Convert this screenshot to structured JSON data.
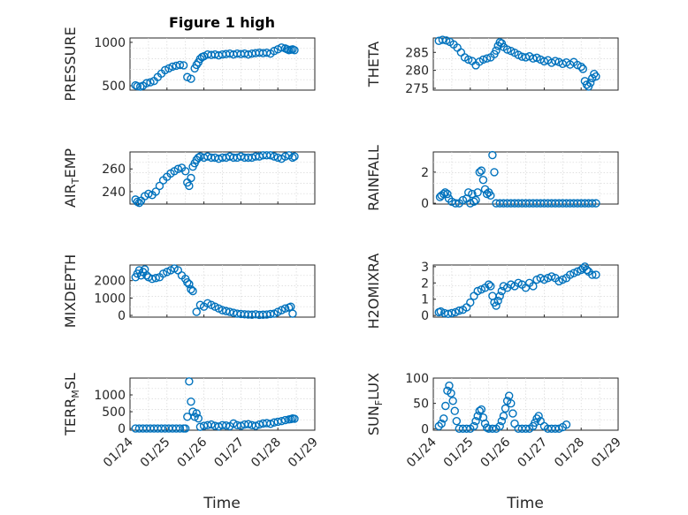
{
  "figure": {
    "title": "Figure 1 high"
  },
  "x_axis": {
    "ticks": [
      "01/24",
      "01/25",
      "01/26",
      "01/27",
      "01/28",
      "01/29"
    ],
    "label": "Time"
  },
  "series_color": "#0072bd",
  "chart_data": [
    {
      "type": "scatter",
      "ylabel": "PRESSURE",
      "ylim": [
        450,
        1050
      ],
      "yticks": [
        500,
        1000
      ],
      "xlim": [
        0,
        5
      ],
      "x": [
        0.15,
        0.2,
        0.28,
        0.35,
        0.45,
        0.55,
        0.65,
        0.75,
        0.85,
        0.95,
        1.05,
        1.15,
        1.25,
        1.35,
        1.45,
        1.55,
        1.65,
        1.75,
        1.8,
        1.85,
        1.9,
        1.95,
        2.0,
        2.1,
        2.2,
        2.3,
        2.4,
        2.5,
        2.6,
        2.7,
        2.8,
        2.9,
        3.0,
        3.1,
        3.2,
        3.3,
        3.4,
        3.5,
        3.6,
        3.7,
        3.8,
        3.9,
        4.0,
        4.1,
        4.2,
        4.25,
        4.3,
        4.35,
        4.4,
        4.45
      ],
      "values": [
        505,
        495,
        490,
        500,
        530,
        540,
        555,
        600,
        640,
        680,
        700,
        720,
        730,
        740,
        735,
        600,
        580,
        700,
        740,
        770,
        810,
        830,
        840,
        860,
        855,
        860,
        850,
        860,
        865,
        870,
        860,
        870,
        865,
        870,
        860,
        870,
        875,
        880,
        875,
        880,
        870,
        900,
        920,
        940,
        930,
        920,
        910,
        915,
        920,
        910
      ]
    },
    {
      "type": "scatter",
      "ylabel": "THETA",
      "ylim": [
        274.5,
        289
      ],
      "yticks": [
        275,
        280,
        285
      ],
      "xlim": [
        0,
        5
      ],
      "x": [
        0.15,
        0.25,
        0.35,
        0.45,
        0.55,
        0.65,
        0.75,
        0.85,
        0.95,
        1.05,
        1.15,
        1.25,
        1.35,
        1.45,
        1.55,
        1.65,
        1.7,
        1.75,
        1.8,
        1.85,
        1.9,
        2.0,
        2.1,
        2.2,
        2.3,
        2.4,
        2.5,
        2.6,
        2.7,
        2.8,
        2.9,
        3.0,
        3.1,
        3.2,
        3.3,
        3.4,
        3.5,
        3.6,
        3.7,
        3.8,
        3.9,
        4.0,
        4.05,
        4.1,
        4.15,
        4.2,
        4.25,
        4.3,
        4.35,
        4.4
      ],
      "values": [
        288.2,
        288.5,
        288.3,
        287.9,
        287.2,
        286.3,
        285.0,
        283.6,
        283.0,
        282.6,
        281.4,
        282.4,
        283.0,
        283.3,
        283.6,
        284.5,
        285.5,
        286.8,
        287.8,
        287.5,
        286.5,
        285.8,
        285.4,
        284.9,
        284.3,
        283.8,
        283.6,
        283.9,
        283.3,
        283.5,
        283.0,
        282.5,
        282.8,
        282.1,
        282.6,
        282.3,
        281.8,
        282.2,
        281.6,
        282.3,
        281.5,
        281.0,
        280.4,
        277.0,
        276.0,
        275.5,
        276.5,
        277.8,
        279.0,
        278.3
      ]
    },
    {
      "type": "scatter",
      "ylabel": "AIR_TEMP",
      "ylim": [
        229,
        275
      ],
      "yticks": [
        240,
        260
      ],
      "xlim": [
        0,
        5
      ],
      "x": [
        0.15,
        0.2,
        0.25,
        0.3,
        0.4,
        0.5,
        0.6,
        0.7,
        0.8,
        0.9,
        1.0,
        1.1,
        1.2,
        1.3,
        1.4,
        1.5,
        1.55,
        1.6,
        1.65,
        1.7,
        1.75,
        1.8,
        1.85,
        1.9,
        2.0,
        2.1,
        2.2,
        2.3,
        2.4,
        2.5,
        2.6,
        2.7,
        2.8,
        2.9,
        3.0,
        3.1,
        3.2,
        3.3,
        3.4,
        3.5,
        3.6,
        3.7,
        3.8,
        3.9,
        4.0,
        4.1,
        4.2,
        4.3,
        4.4,
        4.45
      ],
      "values": [
        233,
        231,
        230,
        232,
        236,
        238,
        237,
        240,
        245,
        250,
        253,
        256,
        258,
        260,
        261,
        258,
        248,
        245,
        252,
        262,
        265,
        268,
        270,
        271,
        270,
        271,
        270,
        270,
        269,
        270,
        270,
        271,
        270,
        270,
        271,
        270,
        270,
        270,
        271,
        271,
        272,
        272,
        272,
        271,
        270,
        269,
        271,
        272,
        270,
        271
      ]
    },
    {
      "type": "scatter",
      "ylabel": "RAINFALL",
      "ylim": [
        -0.05,
        3.3
      ],
      "yticks": [
        0,
        2
      ],
      "xlim": [
        0,
        5
      ],
      "x": [
        0.18,
        0.22,
        0.28,
        0.32,
        0.38,
        0.42,
        0.5,
        0.6,
        0.7,
        0.8,
        0.9,
        0.95,
        1.0,
        1.05,
        1.1,
        1.15,
        1.2,
        1.25,
        1.3,
        1.35,
        1.4,
        1.45,
        1.5,
        1.55,
        1.6,
        1.65,
        1.7,
        1.8,
        1.9,
        2.0,
        2.1,
        2.2,
        2.3,
        2.4,
        2.5,
        2.6,
        2.7,
        2.8,
        2.9,
        3.0,
        3.1,
        3.2,
        3.3,
        3.4,
        3.5,
        3.6,
        3.7,
        3.8,
        3.9,
        4.0,
        4.1,
        4.2,
        4.3,
        4.4
      ],
      "values": [
        0.4,
        0.5,
        0.6,
        0.7,
        0.6,
        0.3,
        0.1,
        0.0,
        0.0,
        0.2,
        0.3,
        0.7,
        0.0,
        0.6,
        0.1,
        0.2,
        0.7,
        2.0,
        2.1,
        1.5,
        0.9,
        0.6,
        0.7,
        0.5,
        3.1,
        2.0,
        0.0,
        0.0,
        0.0,
        0.0,
        0.0,
        0.0,
        0.0,
        0.0,
        0.0,
        0.0,
        0.0,
        0.0,
        0.0,
        0.0,
        0.0,
        0.0,
        0.0,
        0.0,
        0.0,
        0.0,
        0.0,
        0.0,
        0.0,
        0.0,
        0.0,
        0.0,
        0.0,
        0.0
      ]
    },
    {
      "type": "scatter",
      "ylabel": "MIXDEPTH",
      "ylim": [
        -100,
        2900
      ],
      "yticks": [
        0,
        1000,
        2000
      ],
      "xlim": [
        0,
        5
      ],
      "x": [
        0.15,
        0.2,
        0.25,
        0.3,
        0.35,
        0.4,
        0.45,
        0.5,
        0.6,
        0.7,
        0.8,
        0.9,
        1.0,
        1.1,
        1.2,
        1.3,
        1.4,
        1.5,
        1.55,
        1.6,
        1.65,
        1.7,
        1.8,
        1.9,
        2.0,
        2.1,
        2.2,
        2.3,
        2.4,
        2.5,
        2.6,
        2.7,
        2.8,
        2.9,
        3.0,
        3.1,
        3.2,
        3.3,
        3.4,
        3.5,
        3.6,
        3.7,
        3.8,
        3.9,
        4.0,
        4.1,
        4.2,
        4.3,
        4.35,
        4.4
      ],
      "values": [
        2200,
        2400,
        2600,
        2300,
        2500,
        2650,
        2300,
        2200,
        2100,
        2150,
        2200,
        2400,
        2500,
        2600,
        2700,
        2600,
        2300,
        2100,
        1900,
        1800,
        1500,
        1400,
        200,
        600,
        500,
        700,
        600,
        500,
        400,
        300,
        250,
        200,
        150,
        100,
        80,
        60,
        50,
        40,
        60,
        30,
        40,
        50,
        80,
        100,
        200,
        300,
        400,
        450,
        500,
        100
      ]
    },
    {
      "type": "scatter",
      "ylabel": "H2OMIXRA",
      "ylim": [
        -0.1,
        3.1
      ],
      "yticks": [
        0,
        1,
        2,
        3
      ],
      "xlim": [
        0,
        5
      ],
      "x": [
        0.15,
        0.2,
        0.3,
        0.4,
        0.5,
        0.6,
        0.7,
        0.8,
        0.9,
        1.0,
        1.1,
        1.2,
        1.3,
        1.4,
        1.5,
        1.55,
        1.6,
        1.65,
        1.7,
        1.75,
        1.8,
        1.85,
        1.9,
        2.0,
        2.1,
        2.2,
        2.3,
        2.4,
        2.5,
        2.6,
        2.7,
        2.8,
        2.9,
        3.0,
        3.1,
        3.2,
        3.3,
        3.4,
        3.5,
        3.6,
        3.7,
        3.8,
        3.9,
        4.0,
        4.05,
        4.1,
        4.15,
        4.2,
        4.3,
        4.4
      ],
      "values": [
        0.2,
        0.25,
        0.15,
        0.1,
        0.15,
        0.2,
        0.3,
        0.35,
        0.5,
        0.8,
        1.2,
        1.5,
        1.6,
        1.7,
        1.9,
        1.8,
        1.2,
        0.8,
        0.6,
        0.9,
        1.2,
        1.5,
        1.8,
        1.7,
        1.9,
        1.8,
        2.0,
        1.9,
        1.7,
        2.0,
        1.8,
        2.2,
        2.3,
        2.2,
        2.3,
        2.4,
        2.3,
        2.1,
        2.2,
        2.3,
        2.5,
        2.6,
        2.7,
        2.8,
        2.9,
        3.0,
        2.8,
        2.7,
        2.5,
        2.5
      ]
    },
    {
      "type": "scatter",
      "ylabel": "TERR_MSL",
      "ylim": [
        -50,
        1500
      ],
      "yticks": [
        0,
        500,
        1000
      ],
      "xlim": [
        0,
        5
      ],
      "x": [
        0.15,
        0.25,
        0.35,
        0.45,
        0.55,
        0.65,
        0.75,
        0.85,
        0.95,
        1.05,
        1.15,
        1.25,
        1.35,
        1.45,
        1.5,
        1.55,
        1.6,
        1.65,
        1.7,
        1.75,
        1.8,
        1.85,
        1.9,
        2.0,
        2.1,
        2.2,
        2.3,
        2.4,
        2.5,
        2.6,
        2.7,
        2.8,
        2.9,
        3.0,
        3.1,
        3.2,
        3.3,
        3.4,
        3.5,
        3.6,
        3.7,
        3.8,
        3.9,
        4.0,
        4.1,
        4.2,
        4.3,
        4.35,
        4.4,
        4.45
      ],
      "values": [
        0,
        0,
        0,
        0,
        0,
        0,
        0,
        0,
        0,
        0,
        0,
        0,
        0,
        0,
        0,
        350,
        1400,
        800,
        500,
        350,
        450,
        300,
        50,
        80,
        100,
        120,
        80,
        60,
        100,
        90,
        70,
        150,
        100,
        80,
        120,
        130,
        100,
        80,
        120,
        150,
        160,
        140,
        180,
        200,
        220,
        250,
        270,
        280,
        300,
        290
      ]
    },
    {
      "type": "scatter",
      "ylabel": "SUN_FLUX",
      "ylim": [
        -3,
        100
      ],
      "yticks": [
        0,
        50,
        100
      ],
      "xlim": [
        0,
        5
      ],
      "x": [
        0.15,
        0.22,
        0.28,
        0.33,
        0.38,
        0.43,
        0.48,
        0.53,
        0.58,
        0.63,
        0.7,
        0.8,
        0.9,
        1.0,
        1.1,
        1.15,
        1.2,
        1.25,
        1.3,
        1.35,
        1.4,
        1.45,
        1.5,
        1.6,
        1.7,
        1.8,
        1.85,
        1.9,
        1.95,
        2.0,
        2.05,
        2.1,
        2.15,
        2.2,
        2.3,
        2.4,
        2.5,
        2.6,
        2.7,
        2.75,
        2.8,
        2.85,
        2.9,
        3.0,
        3.1,
        3.2,
        3.3,
        3.4,
        3.5,
        3.6
      ],
      "values": [
        5,
        10,
        20,
        45,
        75,
        85,
        70,
        55,
        35,
        15,
        0,
        0,
        0,
        0,
        5,
        15,
        25,
        35,
        38,
        22,
        10,
        2,
        0,
        0,
        0,
        5,
        15,
        25,
        40,
        55,
        65,
        50,
        30,
        10,
        0,
        0,
        0,
        0,
        5,
        12,
        20,
        25,
        15,
        5,
        0,
        0,
        0,
        0,
        3,
        8
      ]
    }
  ]
}
